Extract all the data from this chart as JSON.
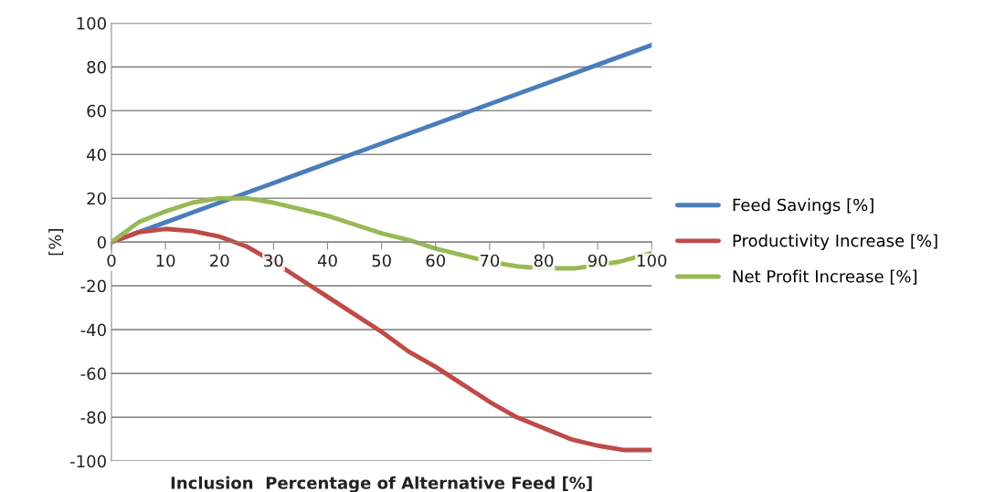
{
  "chart_data": {
    "type": "line",
    "xlabel": "Inclusion  Percentage of Alternative Feed [%]",
    "ylabel": "[%]",
    "x": [
      0,
      5,
      10,
      15,
      20,
      25,
      30,
      35,
      40,
      45,
      50,
      55,
      60,
      65,
      70,
      75,
      80,
      85,
      90,
      95,
      100
    ],
    "xlim": [
      0,
      100
    ],
    "xticks": [
      0,
      10,
      20,
      30,
      40,
      50,
      60,
      70,
      80,
      90,
      100
    ],
    "ylim": [
      -100,
      100
    ],
    "yticks": [
      -100,
      -80,
      -60,
      -40,
      -20,
      0,
      20,
      40,
      60,
      80,
      100
    ],
    "grid": "y",
    "legend": "right",
    "marker": "none",
    "line_style": "solid",
    "series": [
      {
        "name": "Feed Savings [%]",
        "color": "#4a7ebb",
        "values": [
          0,
          4.5,
          9,
          13.5,
          18,
          22.5,
          27,
          31.5,
          36,
          40.5,
          45,
          49.5,
          54,
          58.5,
          63,
          67.5,
          72,
          76.5,
          81,
          85.5,
          90
        ]
      },
      {
        "name": "Productivity Increase [%]",
        "color": "#be4b48",
        "values": [
          0,
          4.5,
          6,
          5,
          2.5,
          -2,
          -9,
          -17,
          -25,
          -33,
          -41,
          -50,
          -57,
          -65,
          -73,
          -80,
          -85,
          -90,
          -93,
          -95,
          -95
        ]
      },
      {
        "name": "Net Profit Increase [%]",
        "color": "#98b954",
        "x": [
          0,
          5,
          10,
          15,
          20,
          25,
          30,
          35,
          40,
          45,
          50,
          55,
          60,
          65,
          70,
          75,
          77,
          83,
          86,
          94,
          100
        ],
        "values": [
          0,
          9,
          14,
          18,
          20,
          20,
          18,
          15,
          12,
          8,
          4,
          1,
          -3,
          -6,
          -9,
          -11,
          -11.5,
          -12,
          -12,
          -9,
          -5
        ]
      }
    ]
  }
}
